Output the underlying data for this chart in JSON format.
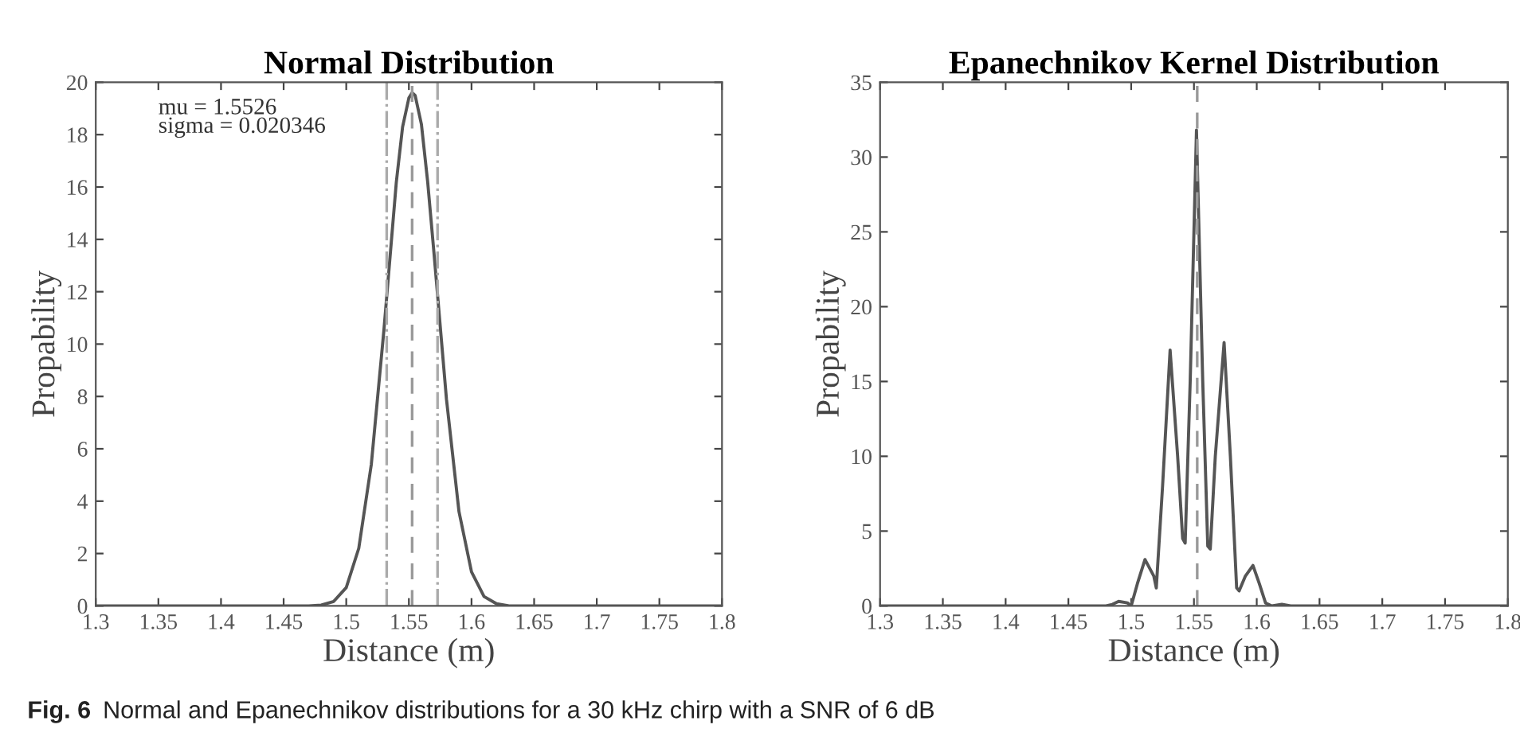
{
  "chart_data": [
    {
      "type": "line",
      "title": "Normal Distribution",
      "xlabel": "Distance (m)",
      "ylabel": "Propability",
      "annotations": [
        "mu = 1.5526\nsigma = 0.020346",
        "Fig. 6  Normal and Epanechnikov distributions for a 30 kHz chirp with a SNR of 6 dB"
      ],
      "series": [
        {
          "color": "#555555",
          "x": [
            1.3,
            1.47,
            1.48,
            1.49,
            1.5,
            1.51,
            1.52,
            1.53,
            1.54,
            1.545,
            1.55,
            1.5526,
            1.555,
            1.56,
            1.565,
            1.57,
            1.58,
            1.59,
            1.6,
            1.61,
            1.62,
            1.63,
            1.8
          ],
          "values": [
            0,
            0,
            0.03,
            0.17,
            0.7,
            2.2,
            5.4,
            10.5,
            16.2,
            18.3,
            19.4,
            19.6,
            19.5,
            18.4,
            16.2,
            13.5,
            7.9,
            3.6,
            1.3,
            0.36,
            0.08,
            0,
            0
          ]
        }
      ],
      "ref_lines": [
        {
          "axis": "x",
          "value": 1.5526,
          "color": "#999999",
          "line_style": "dashed"
        },
        {
          "axis": "x",
          "value": 1.5323,
          "color": "#aaaaaa",
          "line_style": "dashdot"
        },
        {
          "axis": "x",
          "value": 1.5729,
          "color": "#aaaaaa",
          "line_style": "dashdot"
        }
      ],
      "xlim": [
        1.3,
        1.8
      ],
      "xticks": [
        1.3,
        1.35,
        1.4,
        1.45,
        1.5,
        1.55,
        1.6,
        1.65,
        1.7,
        1.75,
        1.8
      ],
      "ylim": [
        0,
        20
      ],
      "yticks": [
        0,
        2,
        4,
        6,
        8,
        10,
        12,
        14,
        16,
        18,
        20
      ],
      "grid": false,
      "legend": false
    },
    {
      "type": "line",
      "title": "Epanechnikov Kernel Distribution",
      "xlabel": "Distance (m)",
      "ylabel": "Propability",
      "series": [
        {
          "color": "#555555",
          "x": [
            1.3,
            1.48,
            1.485,
            1.49,
            1.497,
            1.5,
            1.505,
            1.511,
            1.518,
            1.52,
            1.525,
            1.531,
            1.537,
            1.541,
            1.543,
            1.547,
            1.552,
            1.557,
            1.561,
            1.563,
            1.567,
            1.574,
            1.579,
            1.584,
            1.586,
            1.591,
            1.597,
            1.602,
            1.607,
            1.612,
            1.62,
            1.627,
            1.8
          ],
          "values": [
            0,
            0,
            0.1,
            0.3,
            0.2,
            0,
            1.5,
            3.1,
            2,
            1.2,
            8,
            17.1,
            10,
            4.5,
            4.2,
            15,
            31.8,
            15,
            4,
            3.8,
            10,
            17.6,
            10,
            1.2,
            1.0,
            2.0,
            2.7,
            1.5,
            0.2,
            0,
            0.1,
            0,
            0
          ]
        }
      ],
      "ref_lines": [
        {
          "axis": "x",
          "value": 1.5526,
          "color": "#999999",
          "line_style": "dashed"
        }
      ],
      "xlim": [
        1.3,
        1.8
      ],
      "xticks": [
        1.3,
        1.35,
        1.4,
        1.45,
        1.5,
        1.55,
        1.6,
        1.65,
        1.7,
        1.75,
        1.8
      ],
      "ylim": [
        0,
        35
      ],
      "yticks": [
        0,
        5,
        10,
        15,
        20,
        25,
        30,
        35
      ],
      "grid": false,
      "legend": false
    }
  ]
}
